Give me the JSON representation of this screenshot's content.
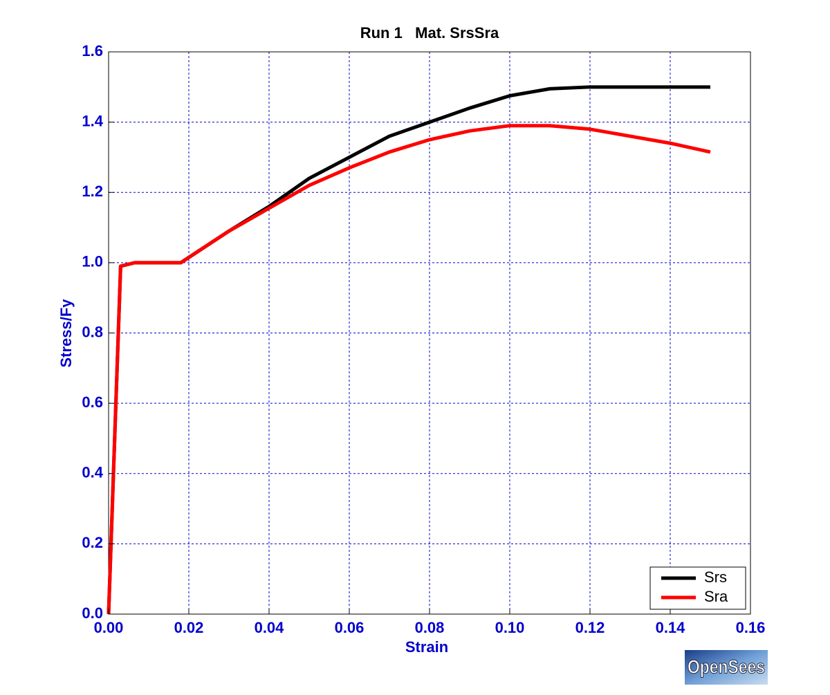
{
  "chart_data": {
    "type": "line",
    "title": "Run 1   Mat. SrsSra",
    "x_label": "Strain",
    "y_label": "Stress/Fy",
    "x": [
      0,
      0.003,
      0.0065,
      0.018,
      0.03,
      0.04,
      0.05,
      0.06,
      0.07,
      0.08,
      0.09,
      0.1,
      0.11,
      0.12,
      0.13,
      0.14,
      0.15
    ],
    "series": [
      {
        "name": "Srs",
        "color": "#000000",
        "values": [
          0,
          0.99,
          1.0,
          1.0,
          1.09,
          1.16,
          1.24,
          1.3,
          1.36,
          1.4,
          1.44,
          1.475,
          1.495,
          1.5,
          1.5,
          1.5,
          1.5
        ]
      },
      {
        "name": "Sra",
        "color": "#ff0000",
        "values": [
          0,
          0.99,
          1.0,
          1.0,
          1.09,
          1.155,
          1.22,
          1.27,
          1.315,
          1.35,
          1.375,
          1.39,
          1.39,
          1.38,
          1.36,
          1.34,
          1.315
        ]
      }
    ],
    "xlim": [
      0,
      0.16
    ],
    "ylim": [
      0,
      1.6
    ],
    "xticks": [
      {
        "value": 0,
        "label": "0.00"
      },
      0.02,
      0.04,
      0.06,
      0.08,
      {
        "value": 0.1,
        "label": "0.10"
      },
      0.12,
      0.14,
      0.16
    ],
    "yticks": [
      {
        "value": 0,
        "label": "0.0"
      },
      0.2,
      0.4,
      0.6,
      0.8,
      {
        "value": 1,
        "label": "1.0"
      },
      1.2,
      1.4,
      1.6
    ],
    "grid": true,
    "legend": "lower right",
    "logo": "OpenSees"
  }
}
